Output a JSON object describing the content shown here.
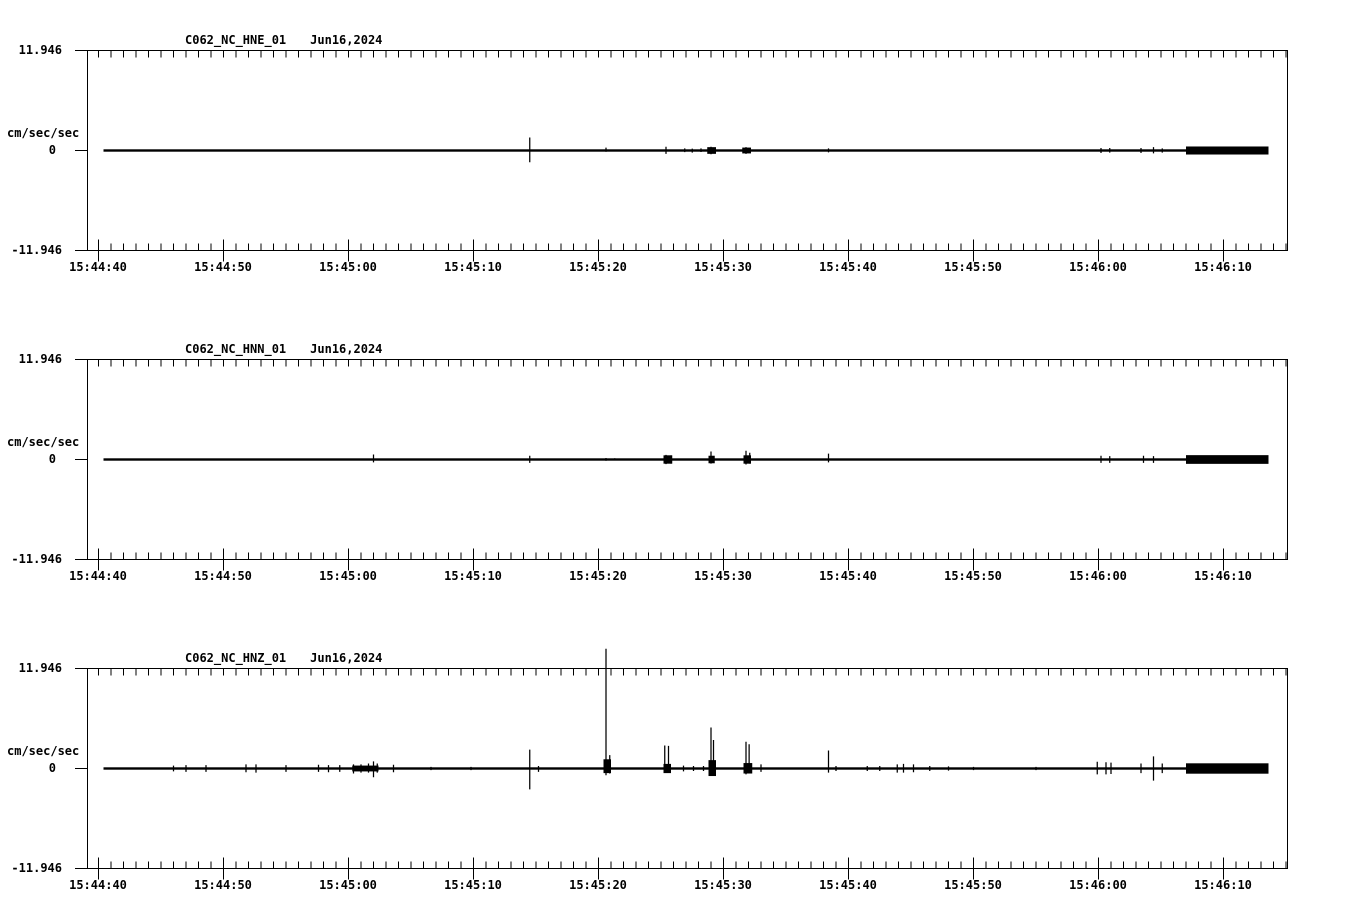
{
  "window": {
    "background": "#ffffff",
    "ink": "#000000"
  },
  "chart_data": {
    "type": "line",
    "subtype": "seismogram-triptych",
    "station_network": "C062_NC",
    "date": "Jun16,2024",
    "units": "cm/sec/sec",
    "y_axis": {
      "max": 11.946,
      "min": -11.946,
      "max_label": "11.946",
      "min_label": "-11.946",
      "zero_label": "0",
      "unit_label": "cm/sec/sec"
    },
    "x_axis": {
      "start_time": "15:44:40",
      "end_time": "15:46:15",
      "major_tick_interval_s": 10,
      "minor_tick_interval_s": 1,
      "labels": [
        "15:44:40",
        "15:44:50",
        "15:45:00",
        "15:45:10",
        "15:45:20",
        "15:45:30",
        "15:45:40",
        "15:45:50",
        "15:46:00",
        "15:46:10"
      ]
    },
    "panels": [
      {
        "channel": "HNE",
        "title": "C062_NC_HNE_01",
        "date_label": "Jun16,2024",
        "ymax_label": "11.946",
        "ymin_label": "-11.946",
        "unit_label": "cm/sec/sec",
        "zero_label": "0",
        "trace": {
          "baseline_value": 0,
          "t_start_s": 0.4,
          "t_end_s": 93.6,
          "spikes_t_up_down": [
            [
              3.8,
              0.1,
              0.1
            ],
            [
              5.0,
              0.08,
              0.08
            ],
            [
              12.2,
              0.08,
              0.1
            ],
            [
              14.0,
              0.08,
              0.06
            ],
            [
              18.3,
              0.06,
              0.08
            ],
            [
              21.8,
              0.08,
              0.06
            ],
            [
              26.6,
              0.06,
              0.08
            ],
            [
              34.5,
              1.55,
              1.4
            ],
            [
              35.3,
              0.12,
              0.12
            ],
            [
              36.6,
              0.1,
              0.1
            ],
            [
              38.0,
              0.08,
              0.1
            ],
            [
              40.6,
              0.35,
              0.15
            ],
            [
              41.2,
              0.12,
              0.12
            ],
            [
              45.4,
              0.45,
              0.4
            ],
            [
              46.9,
              0.25,
              0.2
            ],
            [
              47.5,
              0.22,
              0.25
            ],
            [
              48.2,
              0.25,
              0.18
            ],
            [
              49.0,
              0.45,
              0.45
            ],
            [
              51.8,
              0.4,
              0.4
            ],
            [
              58.4,
              0.25,
              0.22
            ],
            [
              64.0,
              0.12,
              0.12
            ],
            [
              65.0,
              0.1,
              0.1
            ],
            [
              72.2,
              0.1,
              0.12
            ],
            [
              73.0,
              0.1,
              0.1
            ],
            [
              80.2,
              0.3,
              0.3
            ],
            [
              80.9,
              0.3,
              0.25
            ],
            [
              83.4,
              0.3,
              0.3
            ],
            [
              84.4,
              0.4,
              0.35
            ],
            [
              85.1,
              0.25,
              0.25
            ]
          ],
          "bursts_t0_t1_up_down": [
            [
              48.7,
              49.4,
              0.4,
              0.4
            ],
            [
              51.5,
              52.2,
              0.35,
              0.35
            ],
            [
              87.0,
              93.6,
              0.48,
              0.48
            ]
          ]
        }
      },
      {
        "channel": "HNN",
        "title": "C062_NC_HNN_01",
        "date_label": "Jun16,2024",
        "ymax_label": "11.946",
        "ymin_label": "-11.946",
        "unit_label": "cm/sec/sec",
        "zero_label": "0",
        "trace": {
          "baseline_value": 0,
          "t_start_s": 0.4,
          "t_end_s": 93.6,
          "spikes_t_up_down": [
            [
              12.2,
              0.08,
              0.08
            ],
            [
              22.0,
              0.6,
              0.35
            ],
            [
              26.6,
              0.08,
              0.08
            ],
            [
              34.5,
              0.45,
              0.4
            ],
            [
              40.6,
              0.18,
              0.15
            ],
            [
              41.3,
              0.15,
              0.12
            ],
            [
              45.4,
              0.55,
              0.55
            ],
            [
              45.8,
              0.5,
              0.5
            ],
            [
              49.0,
              0.95,
              0.5
            ],
            [
              51.8,
              1.05,
              0.6
            ],
            [
              52.1,
              0.8,
              0.5
            ],
            [
              58.4,
              0.7,
              0.35
            ],
            [
              64.0,
              0.1,
              0.1
            ],
            [
              80.2,
              0.45,
              0.4
            ],
            [
              80.9,
              0.4,
              0.4
            ],
            [
              83.6,
              0.45,
              0.4
            ],
            [
              84.4,
              0.4,
              0.4
            ]
          ],
          "bursts_t0_t1_up_down": [
            [
              45.2,
              45.9,
              0.5,
              0.5
            ],
            [
              48.8,
              49.3,
              0.45,
              0.45
            ],
            [
              51.6,
              52.2,
              0.5,
              0.5
            ],
            [
              87.0,
              93.6,
              0.52,
              0.52
            ]
          ]
        }
      },
      {
        "channel": "HNZ",
        "title": "C062_NC_HNZ_01",
        "date_label": "Jun16,2024",
        "ymax_label": "11.946",
        "ymin_label": "-11.946",
        "unit_label": "cm/sec/sec",
        "zero_label": "0",
        "trace": {
          "baseline_value": 0,
          "t_start_s": 0.4,
          "t_end_s": 93.6,
          "spikes_t_up_down": [
            [
              6.0,
              0.35,
              0.35
            ],
            [
              7.0,
              0.4,
              0.4
            ],
            [
              8.6,
              0.4,
              0.4
            ],
            [
              11.8,
              0.5,
              0.45
            ],
            [
              12.6,
              0.5,
              0.5
            ],
            [
              15.0,
              0.4,
              0.4
            ],
            [
              17.6,
              0.45,
              0.4
            ],
            [
              18.4,
              0.4,
              0.45
            ],
            [
              19.3,
              0.4,
              0.4
            ],
            [
              20.4,
              0.5,
              0.6
            ],
            [
              21.0,
              0.5,
              0.5
            ],
            [
              21.6,
              0.6,
              0.5
            ],
            [
              22.0,
              0.85,
              1.05
            ],
            [
              22.3,
              0.6,
              0.5
            ],
            [
              23.6,
              0.45,
              0.45
            ],
            [
              26.6,
              0.2,
              0.2
            ],
            [
              29.8,
              0.2,
              0.2
            ],
            [
              34.5,
              2.25,
              2.5
            ],
            [
              35.2,
              0.3,
              0.4
            ],
            [
              40.6,
              14.3,
              0.8
            ],
            [
              40.9,
              1.6,
              0.6
            ],
            [
              45.3,
              2.75,
              0.5
            ],
            [
              45.6,
              2.7,
              0.5
            ],
            [
              46.8,
              0.35,
              0.35
            ],
            [
              47.6,
              0.3,
              0.3
            ],
            [
              48.4,
              0.3,
              0.3
            ],
            [
              49.0,
              4.9,
              0.9
            ],
            [
              49.2,
              3.4,
              0.8
            ],
            [
              51.8,
              3.2,
              0.7
            ],
            [
              52.05,
              2.9,
              0.6
            ],
            [
              53.0,
              0.5,
              0.4
            ],
            [
              58.4,
              2.15,
              0.5
            ],
            [
              59.0,
              0.3,
              0.3
            ],
            [
              61.5,
              0.3,
              0.3
            ],
            [
              62.5,
              0.3,
              0.3
            ],
            [
              63.9,
              0.5,
              0.5
            ],
            [
              64.4,
              0.55,
              0.5
            ],
            [
              65.2,
              0.5,
              0.45
            ],
            [
              66.5,
              0.3,
              0.3
            ],
            [
              68.0,
              0.25,
              0.25
            ],
            [
              70.0,
              0.2,
              0.2
            ],
            [
              75.0,
              0.2,
              0.2
            ],
            [
              79.9,
              0.8,
              0.7
            ],
            [
              80.6,
              0.75,
              0.7
            ],
            [
              81.0,
              0.7,
              0.65
            ],
            [
              83.4,
              0.6,
              0.55
            ],
            [
              84.4,
              1.45,
              1.45
            ],
            [
              85.1,
              0.6,
              0.55
            ]
          ],
          "bursts_t0_t1_up_down": [
            [
              20.3,
              22.4,
              0.35,
              0.35
            ],
            [
              40.4,
              41.0,
              1.1,
              0.55
            ],
            [
              45.2,
              45.8,
              0.55,
              0.55
            ],
            [
              48.8,
              49.4,
              1.0,
              0.9
            ],
            [
              51.6,
              52.3,
              0.65,
              0.6
            ],
            [
              87.0,
              93.6,
              0.62,
              0.62
            ]
          ]
        }
      }
    ]
  }
}
